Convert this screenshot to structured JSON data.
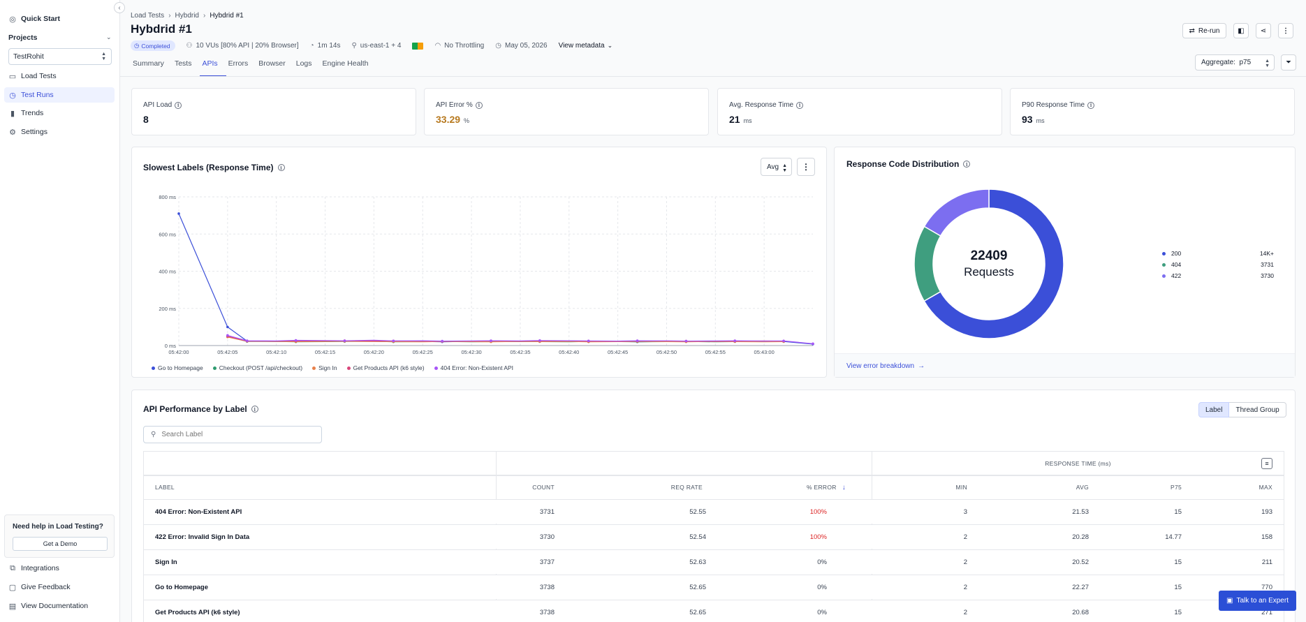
{
  "sidebar": {
    "quick_start": "Quick Start",
    "projects_label": "Projects",
    "project_selected": "TestRohit",
    "items": [
      {
        "label": "Load Tests"
      },
      {
        "label": "Test Runs"
      },
      {
        "label": "Trends"
      },
      {
        "label": "Settings"
      }
    ],
    "help_title": "Need help in Load Testing?",
    "demo_button": "Get a Demo",
    "footer": [
      "Integrations",
      "Give Feedback",
      "View Documentation"
    ]
  },
  "header": {
    "breadcrumb": [
      "Load Tests",
      "Hybdrid",
      "Hybdrid #1"
    ],
    "title": "Hybdrid #1",
    "status": "Completed",
    "vus": "10 VUs [80% API | 20% Browser]",
    "duration": "1m 14s",
    "region": "us-east-1 + 4",
    "throttling": "No Throttling",
    "date": "May 05, 2026",
    "view_metadata": "View metadata",
    "rerun_label": "Re-run",
    "tabs": [
      "Summary",
      "Tests",
      "APIs",
      "Errors",
      "Browser",
      "Logs",
      "Engine Health"
    ],
    "active_tab": "APIs",
    "aggregate_label": "Aggregate:",
    "aggregate_value": "p75"
  },
  "stats": [
    {
      "label": "API Load",
      "value": "8",
      "unit": ""
    },
    {
      "label": "API Error %",
      "value": "33.29",
      "unit": "%"
    },
    {
      "label": "Avg. Response Time",
      "value": "21",
      "unit": "ms"
    },
    {
      "label": "P90 Response Time",
      "value": "93",
      "unit": "ms"
    }
  ],
  "slowest": {
    "title": "Slowest Labels (Response Time)",
    "agg_select": "Avg"
  },
  "chart_data": [
    {
      "type": "line",
      "title": "Slowest Labels (Response Time)",
      "ylim": [
        0,
        800
      ],
      "y_ticks": [
        "0 ms",
        "200 ms",
        "400 ms",
        "600 ms",
        "800 ms"
      ],
      "x_ticks": [
        "05:42:00",
        "05:42:05",
        "05:42:10",
        "05:42:15",
        "05:42:20",
        "05:42:25",
        "05:42:30",
        "05:42:35",
        "05:42:40",
        "05:42:45",
        "05:42:50",
        "05:42:55",
        "05:43:00"
      ],
      "x_seconds": [
        0,
        5,
        7,
        10,
        12,
        15,
        17,
        20,
        22,
        25,
        27,
        30,
        32,
        35,
        37,
        40,
        42,
        45,
        47,
        50,
        52,
        55,
        57,
        60,
        62,
        65
      ],
      "colors": {
        "Go to Homepage": "#3b4fd8",
        "Checkout (POST /api/checkout)": "#2e9b6f",
        "Sign In": "#e8804a",
        "Get Products API (k6 style)": "#d9467a",
        "404 Error: Non-Existent API": "#a855f7"
      },
      "series": [
        {
          "name": "Go to Homepage",
          "values": [
            710,
            100,
            24,
            22,
            23,
            22,
            24,
            23,
            21,
            22,
            20,
            23,
            22,
            21,
            22,
            23,
            21,
            22,
            20,
            22,
            23,
            21,
            22,
            23,
            22,
            8
          ]
        },
        {
          "name": "Checkout (POST /api/checkout)",
          "values": [
            null,
            48,
            22,
            22,
            20,
            21,
            22,
            23,
            20,
            21,
            22,
            20,
            21,
            22,
            21,
            20,
            22,
            21,
            20,
            21,
            22,
            20,
            21,
            22,
            21,
            null
          ]
        },
        {
          "name": "Sign In",
          "values": [
            null,
            46,
            23,
            22,
            21,
            22,
            23,
            22,
            21,
            20,
            22,
            21,
            20,
            22,
            21,
            22,
            20,
            21,
            22,
            21,
            20,
            22,
            21,
            20,
            21,
            null
          ]
        },
        {
          "name": "Get Products API (k6 style)",
          "values": [
            null,
            50,
            24,
            24,
            25,
            25,
            26,
            24,
            25,
            24,
            23,
            24,
            25,
            24,
            26,
            25,
            24,
            23,
            24,
            25,
            24,
            23,
            24,
            25,
            24,
            null
          ]
        },
        {
          "name": "404 Error: Non-Existent API",
          "values": [
            null,
            55,
            26,
            25,
            28,
            27,
            26,
            29,
            25,
            26,
            24,
            25,
            26,
            25,
            27,
            26,
            25,
            24,
            26,
            25,
            24,
            25,
            26,
            24,
            25,
            10
          ]
        }
      ],
      "grid": true,
      "legend_position": "bottom"
    },
    {
      "type": "pie",
      "title": "Response Code Distribution",
      "total": "22409",
      "total_label": "Requests",
      "slices": [
        {
          "label": "200",
          "display": "14K+",
          "value": 14948,
          "color": "#3b4fd8"
        },
        {
          "label": "404",
          "display": "3731",
          "value": 3731,
          "color": "#3f9e7f"
        },
        {
          "label": "422",
          "display": "3730",
          "value": 3730,
          "color": "#7c6ef0"
        }
      ]
    }
  ],
  "response_dist": {
    "title": "Response Code Distribution",
    "error_link": "View error breakdown"
  },
  "perf": {
    "title": "API Performance by Label",
    "toggle": [
      "Label",
      "Thread Group"
    ],
    "search_placeholder": "Search Label",
    "group_header": "RESPONSE TIME (ms)",
    "columns": [
      "LABEL",
      "COUNT",
      "REQ RATE",
      "% ERROR",
      "MIN",
      "AVG",
      "P75",
      "MAX"
    ],
    "rows": [
      {
        "label": "404 Error: Non-Existent API",
        "count": "3731",
        "rate": "52.55",
        "error": "100%",
        "min": "3",
        "avg": "21.53",
        "p75": "15",
        "max": "193"
      },
      {
        "label": "422 Error: Invalid Sign In Data",
        "count": "3730",
        "rate": "52.54",
        "error": "100%",
        "min": "2",
        "avg": "20.28",
        "p75": "14.77",
        "max": "158"
      },
      {
        "label": "Sign In",
        "count": "3737",
        "rate": "52.63",
        "error": "0%",
        "min": "2",
        "avg": "20.52",
        "p75": "15",
        "max": "211"
      },
      {
        "label": "Go to Homepage",
        "count": "3738",
        "rate": "52.65",
        "error": "0%",
        "min": "2",
        "avg": "22.27",
        "p75": "15",
        "max": "770"
      },
      {
        "label": "Get Products API (k6 style)",
        "count": "3738",
        "rate": "52.65",
        "error": "0%",
        "min": "2",
        "avg": "20.68",
        "p75": "15",
        "max": "271"
      }
    ]
  },
  "expert_button": "Talk to an Expert"
}
